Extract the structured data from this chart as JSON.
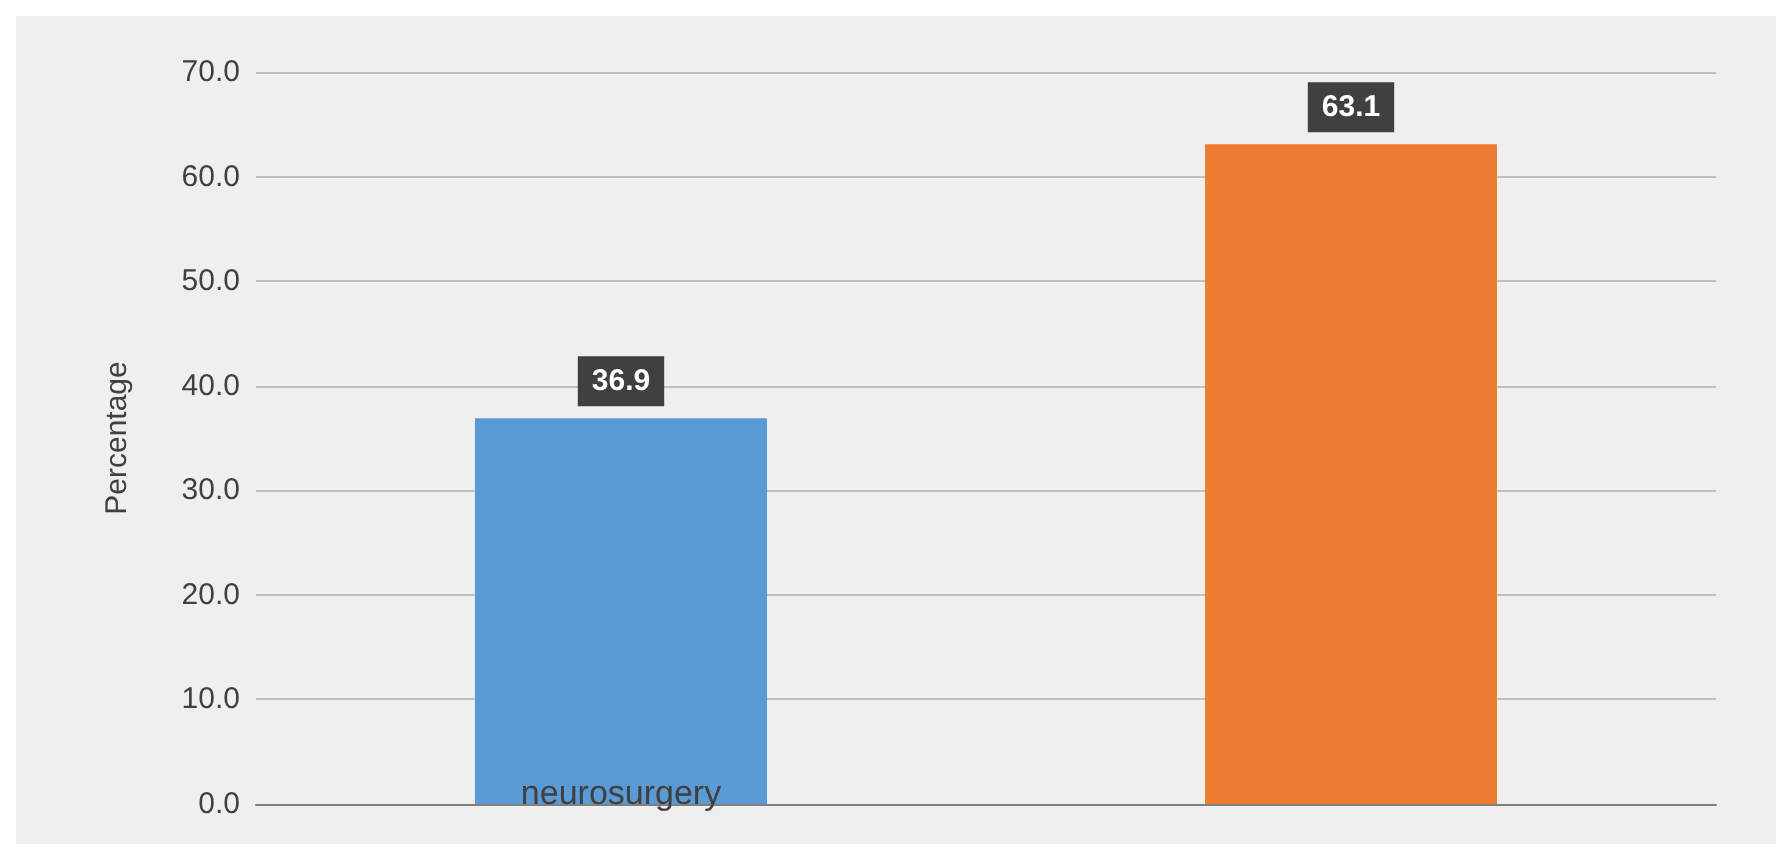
{
  "chart_data": {
    "type": "bar",
    "ylabel": "Percentage",
    "categories": [
      "neurosurgery",
      null
    ],
    "values": [
      36.9,
      63.1
    ],
    "colors": [
      "#5b9bd5",
      "#ed7d31"
    ],
    "ylim": [
      0,
      70
    ],
    "yticks": [
      {
        "value": 0,
        "label": "0.0"
      },
      {
        "value": 10,
        "label": "10.0"
      },
      {
        "value": 20,
        "label": "20.0"
      },
      {
        "value": 30,
        "label": "30.0"
      },
      {
        "value": 40,
        "label": "40.0"
      },
      {
        "value": 50,
        "label": "50.0"
      },
      {
        "value": 60,
        "label": "60.0"
      },
      {
        "value": 70,
        "label": "70.0"
      }
    ],
    "grid": "y",
    "data_labels": true
  }
}
